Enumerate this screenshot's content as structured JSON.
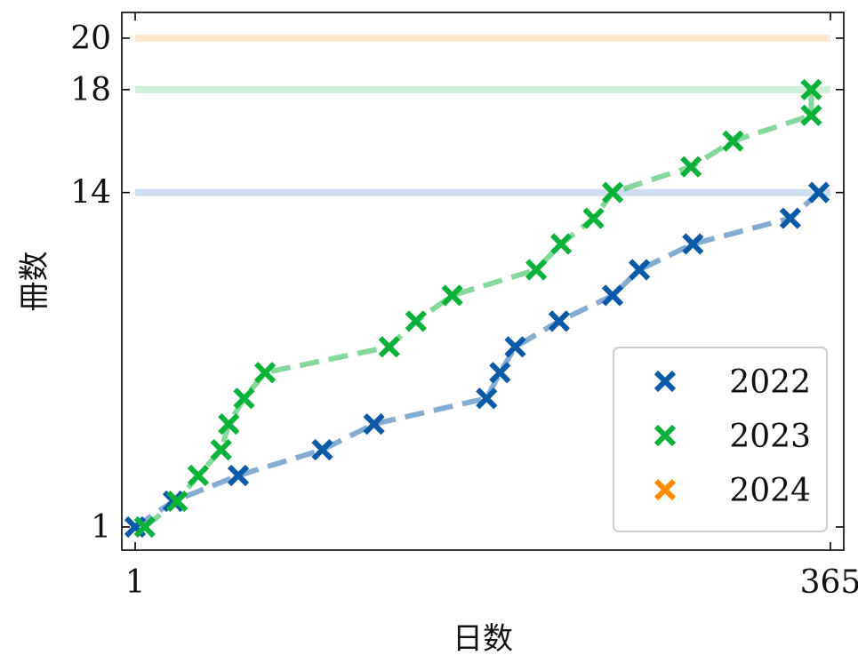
{
  "chart_data": {
    "type": "scatter",
    "xlabel": "日数",
    "ylabel": "冊数",
    "xlim": [
      -6,
      372
    ],
    "ylim": [
      0.1,
      21.0
    ],
    "xticks": [
      1,
      365
    ],
    "yticks": [
      1,
      14,
      18,
      20
    ],
    "legend_position": "lower-right",
    "series": [
      {
        "name": "2022",
        "color": "#0a5aa8",
        "target": 14,
        "x": [
          1,
          21,
          55,
          99,
          126,
          185,
          192,
          200,
          223,
          251,
          265,
          293,
          344,
          359
        ],
        "y": [
          1,
          2,
          3,
          4,
          5,
          6,
          7,
          8,
          9,
          10,
          11,
          12,
          13,
          14
        ]
      },
      {
        "name": "2023",
        "color": "#0bb23a",
        "target": 18,
        "x": [
          6,
          23,
          34,
          46,
          50,
          58,
          69,
          134,
          148,
          167,
          211,
          224,
          241,
          251,
          292,
          314,
          355,
          355
        ],
        "y": [
          1,
          2,
          3,
          4,
          5,
          6,
          7,
          8,
          9,
          10,
          11,
          12,
          13,
          14,
          15,
          16,
          17,
          18
        ]
      },
      {
        "name": "2024",
        "color": "#ff8c00",
        "target": 20,
        "x": [],
        "y": []
      }
    ]
  }
}
